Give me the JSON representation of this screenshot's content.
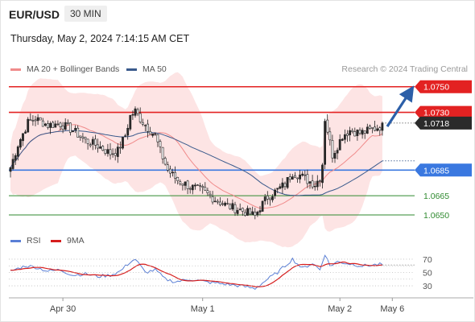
{
  "header": {
    "symbol": "EUR/USD",
    "timeframe": "30 MIN",
    "datetime": "Thursday, May 2, 2024 7:14:15 AM CET",
    "credit": "Research © 2024 Trading Central"
  },
  "colors": {
    "candle_up": "#2a2a2a",
    "candle_down": "#ffffff",
    "bollinger_fill": "#fde1e1",
    "ma20": "#f08b8b",
    "ma50": "#3a5a8c",
    "resistance": "#e32222",
    "pivot": "#3a78e0",
    "support": "#2f8a2f",
    "rsi": "#5a7fd6",
    "rsi_ma": "#d61e1e",
    "arrow": "#2c5fa8",
    "current_tag": "#2b2b2b"
  },
  "chart_data": [
    {
      "type": "candlestick",
      "legend": [
        {
          "label": "MA 20 + Bollinger Bands",
          "color": "#f08b8b"
        },
        {
          "label": "MA 50",
          "color": "#3a5a8c"
        }
      ],
      "x_ticks": [
        "Apr 30",
        "May 1",
        "May 2",
        "May 6"
      ],
      "x_tick_bar_index": [
        21,
        77,
        132,
        153
      ],
      "ylim": [
        1.0645,
        1.0758
      ],
      "current_price": "1.0718",
      "levels": [
        {
          "label": "1.0750",
          "value": 1.075,
          "kind": "resistance",
          "style": "tag"
        },
        {
          "label": "1.0730",
          "value": 1.073,
          "kind": "resistance",
          "style": "tag"
        },
        {
          "label": "1.0685",
          "value": 1.0685,
          "kind": "pivot",
          "style": "tag"
        },
        {
          "label": "1.0665",
          "value": 1.0665,
          "kind": "support",
          "style": "text"
        },
        {
          "label": "1.0650",
          "value": 1.065,
          "kind": "support",
          "style": "text"
        }
      ],
      "projection": {
        "from": 1.0719,
        "to": 1.0749
      },
      "anchors": [
        {
          "i": 0,
          "price": 1.0687
        },
        {
          "i": 3,
          "price": 1.0705
        },
        {
          "i": 7,
          "price": 1.0722
        },
        {
          "i": 10,
          "price": 1.0725
        },
        {
          "i": 15,
          "price": 1.072
        },
        {
          "i": 20,
          "price": 1.0721
        },
        {
          "i": 25,
          "price": 1.0716
        },
        {
          "i": 30,
          "price": 1.0708
        },
        {
          "i": 35,
          "price": 1.0704
        },
        {
          "i": 40,
          "price": 1.0698
        },
        {
          "i": 43,
          "price": 1.07
        },
        {
          "i": 46,
          "price": 1.0712
        },
        {
          "i": 48,
          "price": 1.0727
        },
        {
          "i": 50,
          "price": 1.0731
        },
        {
          "i": 52,
          "price": 1.0725
        },
        {
          "i": 55,
          "price": 1.0718
        },
        {
          "i": 58,
          "price": 1.0712
        },
        {
          "i": 60,
          "price": 1.07
        },
        {
          "i": 63,
          "price": 1.0685
        },
        {
          "i": 67,
          "price": 1.0677
        },
        {
          "i": 72,
          "price": 1.0672
        },
        {
          "i": 77,
          "price": 1.0669
        },
        {
          "i": 82,
          "price": 1.0662
        },
        {
          "i": 87,
          "price": 1.0657
        },
        {
          "i": 92,
          "price": 1.0654
        },
        {
          "i": 96,
          "price": 1.0651
        },
        {
          "i": 98,
          "price": 1.0649
        },
        {
          "i": 100,
          "price": 1.0656
        },
        {
          "i": 103,
          "price": 1.0664
        },
        {
          "i": 106,
          "price": 1.0668
        },
        {
          "i": 110,
          "price": 1.0674
        },
        {
          "i": 113,
          "price": 1.0683
        },
        {
          "i": 116,
          "price": 1.0681
        },
        {
          "i": 119,
          "price": 1.0677
        },
        {
          "i": 122,
          "price": 1.0674
        },
        {
          "i": 124,
          "price": 1.0679
        },
        {
          "i": 125,
          "price": 1.069
        },
        {
          "i": 126,
          "price": 1.0725
        },
        {
          "i": 127,
          "price": 1.0716
        },
        {
          "i": 129,
          "price": 1.0697
        },
        {
          "i": 131,
          "price": 1.0704
        },
        {
          "i": 133,
          "price": 1.0712
        },
        {
          "i": 136,
          "price": 1.0716
        },
        {
          "i": 140,
          "price": 1.0714
        },
        {
          "i": 144,
          "price": 1.0716
        },
        {
          "i": 148,
          "price": 1.0719
        }
      ]
    },
    {
      "type": "line",
      "legend": [
        {
          "label": "RSI",
          "color": "#5a7fd6"
        },
        {
          "label": "9MA",
          "color": "#d61e1e"
        }
      ],
      "ylim": [
        18,
        82
      ],
      "y_ticks": [
        "70",
        "50",
        "30"
      ],
      "y_tick_values": [
        70,
        50,
        30
      ],
      "gridlines": [
        70,
        60,
        50,
        40,
        30
      ],
      "rsi_anchors": [
        {
          "i": 0,
          "v": 52
        },
        {
          "i": 6,
          "v": 60
        },
        {
          "i": 10,
          "v": 58
        },
        {
          "i": 15,
          "v": 52
        },
        {
          "i": 20,
          "v": 54
        },
        {
          "i": 25,
          "v": 46
        },
        {
          "i": 30,
          "v": 48
        },
        {
          "i": 35,
          "v": 44
        },
        {
          "i": 40,
          "v": 46
        },
        {
          "i": 44,
          "v": 52
        },
        {
          "i": 48,
          "v": 66
        },
        {
          "i": 50,
          "v": 70
        },
        {
          "i": 54,
          "v": 50
        },
        {
          "i": 58,
          "v": 54
        },
        {
          "i": 62,
          "v": 40
        },
        {
          "i": 66,
          "v": 36
        },
        {
          "i": 72,
          "v": 40
        },
        {
          "i": 78,
          "v": 36
        },
        {
          "i": 85,
          "v": 33
        },
        {
          "i": 92,
          "v": 30
        },
        {
          "i": 98,
          "v": 26
        },
        {
          "i": 103,
          "v": 40
        },
        {
          "i": 107,
          "v": 50
        },
        {
          "i": 110,
          "v": 60
        },
        {
          "i": 113,
          "v": 70
        },
        {
          "i": 117,
          "v": 56
        },
        {
          "i": 121,
          "v": 64
        },
        {
          "i": 124,
          "v": 54
        },
        {
          "i": 126,
          "v": 78
        },
        {
          "i": 128,
          "v": 60
        },
        {
          "i": 131,
          "v": 66
        },
        {
          "i": 136,
          "v": 63
        },
        {
          "i": 141,
          "v": 60
        },
        {
          "i": 148,
          "v": 62
        }
      ]
    }
  ]
}
